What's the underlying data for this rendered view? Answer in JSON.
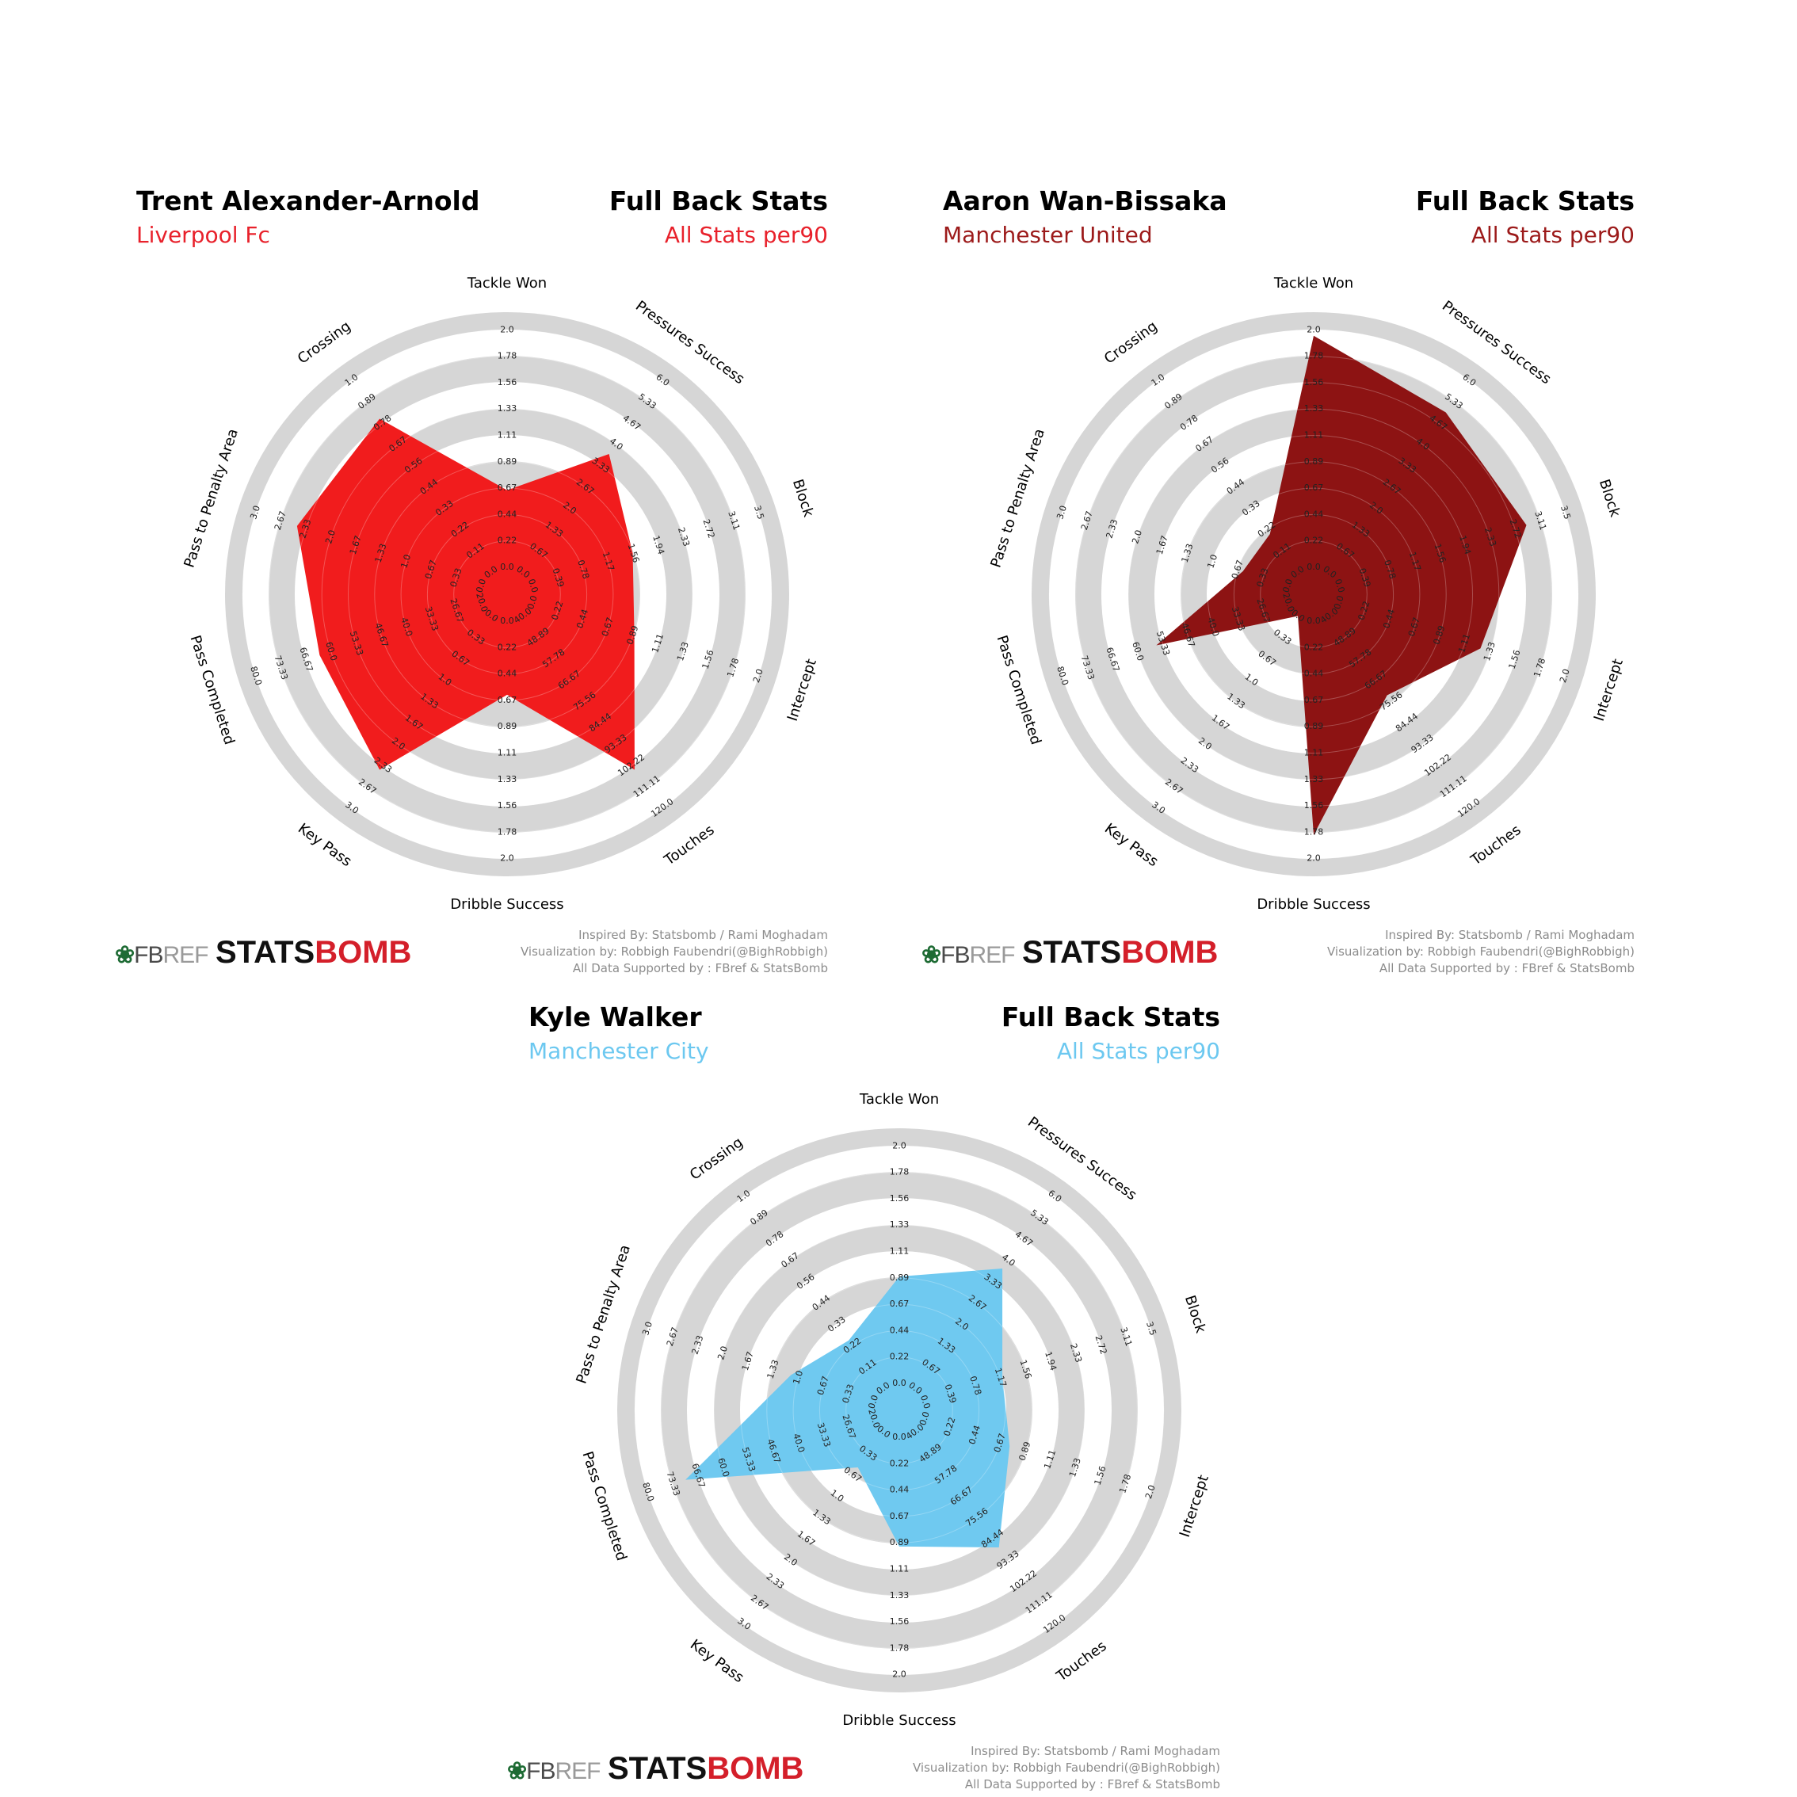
{
  "chart_data": [
    {
      "type": "radar",
      "player": "Trent Alexander-Arnold",
      "team": "Liverpool Fc",
      "title": "Full Back Stats",
      "subtitle": "All Stats per90",
      "color": "#f11718",
      "team_color": "#e8212b",
      "params": [
        "Tackle Won",
        "Pressures Success",
        "Block",
        "Intercept",
        "Touches",
        "Dribble Success",
        "Key Pass",
        "Pass Completed",
        "Pass to Penalty Area",
        "Crossing"
      ],
      "ranges": [
        [
          0,
          2
        ],
        [
          0,
          6
        ],
        [
          0,
          3.5
        ],
        [
          0,
          2
        ],
        [
          40,
          120
        ],
        [
          0,
          2
        ],
        [
          0,
          3
        ],
        [
          20,
          80
        ],
        [
          0,
          3
        ],
        [
          0,
          1
        ]
      ],
      "ticks": [
        [
          "0.0",
          "0.22",
          "0.44",
          "0.67",
          "0.89",
          "1.11",
          "1.33",
          "1.56",
          "1.78",
          "2.0"
        ],
        [
          "0.0",
          "0.67",
          "1.33",
          "2.0",
          "2.67",
          "3.33",
          "4.0",
          "4.67",
          "5.33",
          "6.0"
        ],
        [
          "0.0",
          "0.39",
          "0.78",
          "1.17",
          "1.56",
          "1.94",
          "2.33",
          "2.72",
          "3.11",
          "3.5"
        ],
        [
          "0.0",
          "0.22",
          "0.44",
          "0.67",
          "0.89",
          "1.11",
          "1.33",
          "1.56",
          "1.78",
          "2.0"
        ],
        [
          "40.0",
          "48.89",
          "57.78",
          "66.67",
          "75.56",
          "84.44",
          "93.33",
          "102.22",
          "111.11",
          "120.0"
        ],
        [
          "0.0",
          "0.22",
          "0.44",
          "0.67",
          "0.89",
          "1.11",
          "1.33",
          "1.56",
          "1.78",
          "2.0"
        ],
        [
          "0.0",
          "0.33",
          "0.67",
          "1.0",
          "1.33",
          "1.67",
          "2.0",
          "2.33",
          "2.67",
          "3.0"
        ],
        [
          "20.0",
          "26.67",
          "33.33",
          "40.0",
          "46.67",
          "53.33",
          "60.0",
          "66.67",
          "73.33",
          "80.0"
        ],
        [
          "0.0",
          "0.33",
          "0.67",
          "1.0",
          "1.33",
          "1.67",
          "2.0",
          "2.33",
          "2.67",
          "3.0"
        ],
        [
          "0.0",
          "0.11",
          "0.22",
          "0.33",
          "0.44",
          "0.56",
          "0.67",
          "0.78",
          "0.89",
          "1.0"
        ]
      ],
      "values": [
        0.65,
        3.7,
        1.55,
        0.9,
        104,
        0.62,
        2.4,
        63,
        2.45,
        0.8
      ],
      "footer": [
        "Inspired By: Statsbomb / Rami Moghadam",
        "Visualization by: Robbigh Faubendri(@BighRobbigh)",
        "All Data Supported by : FBref & StatsBomb"
      ],
      "logos": [
        "FBREF",
        "STATSBOMB"
      ]
    },
    {
      "type": "radar",
      "player": "Aaron Wan-Bissaka",
      "team": "Manchester United",
      "title": "Full Back Stats",
      "subtitle": "All Stats per90",
      "color": "#8b0e0e",
      "team_color": "#9c1a1a",
      "params": [
        "Tackle Won",
        "Pressures Success",
        "Block",
        "Intercept",
        "Touches",
        "Dribble Success",
        "Key Pass",
        "Pass Completed",
        "Pass to Penalty Area",
        "Crossing"
      ],
      "ranges": [
        [
          0,
          2
        ],
        [
          0,
          6
        ],
        [
          0,
          3.5
        ],
        [
          0,
          2
        ],
        [
          40,
          120
        ],
        [
          0,
          2
        ],
        [
          0,
          3
        ],
        [
          20,
          80
        ],
        [
          0,
          3
        ],
        [
          0,
          1
        ]
      ],
      "ticks": [
        [
          "0.0",
          "0.22",
          "0.44",
          "0.67",
          "0.89",
          "1.11",
          "1.33",
          "1.56",
          "1.78",
          "2.0"
        ],
        [
          "0.0",
          "0.67",
          "1.33",
          "2.0",
          "2.67",
          "3.33",
          "4.0",
          "4.67",
          "5.33",
          "6.0"
        ],
        [
          "0.0",
          "0.39",
          "0.78",
          "1.17",
          "1.56",
          "1.94",
          "2.33",
          "2.72",
          "3.11",
          "3.5"
        ],
        [
          "0.0",
          "0.22",
          "0.44",
          "0.67",
          "0.89",
          "1.11",
          "1.33",
          "1.56",
          "1.78",
          "2.0"
        ],
        [
          "40.0",
          "48.89",
          "57.78",
          "66.67",
          "75.56",
          "84.44",
          "93.33",
          "102.22",
          "111.11",
          "120.0"
        ],
        [
          "0.0",
          "0.22",
          "0.44",
          "0.67",
          "0.89",
          "1.11",
          "1.33",
          "1.56",
          "1.78",
          "2.0"
        ],
        [
          "0.0",
          "0.33",
          "0.67",
          "1.0",
          "1.33",
          "1.67",
          "2.0",
          "2.33",
          "2.67",
          "3.0"
        ],
        [
          "20.0",
          "26.67",
          "33.33",
          "40.0",
          "46.67",
          "53.33",
          "60.0",
          "66.67",
          "73.33",
          "80.0"
        ],
        [
          "0.0",
          "0.33",
          "0.67",
          "1.0",
          "1.33",
          "1.67",
          "2.0",
          "2.33",
          "2.67",
          "3.0"
        ],
        [
          "0.0",
          "0.11",
          "0.22",
          "0.33",
          "0.44",
          "0.56",
          "0.67",
          "0.78",
          "0.89",
          "1.0"
        ]
      ],
      "values": [
        1.95,
        5.0,
        2.9,
        1.25,
        73,
        1.8,
        0.0,
        55,
        0.6,
        0.2
      ],
      "footer": [
        "Inspired By: Statsbomb / Rami Moghadam",
        "Visualization by: Robbigh Faubendri(@BighRobbigh)",
        "All Data Supported by : FBref & StatsBomb"
      ],
      "logos": [
        "FBREF",
        "STATSBOMB"
      ]
    },
    {
      "type": "radar",
      "player": "Kyle Walker",
      "team": "Manchester City",
      "title": "Full Back Stats",
      "subtitle": "All Stats per90",
      "color": "#6cc8f0",
      "team_color": "#6cc8f0",
      "params": [
        "Tackle Won",
        "Pressures Success",
        "Block",
        "Intercept",
        "Touches",
        "Dribble Success",
        "Key Pass",
        "Pass Completed",
        "Pass to Penalty Area",
        "Crossing"
      ],
      "ranges": [
        [
          0,
          2
        ],
        [
          0,
          6
        ],
        [
          0,
          3.5
        ],
        [
          0,
          2
        ],
        [
          40,
          120
        ],
        [
          0,
          2
        ],
        [
          0,
          3
        ],
        [
          20,
          80
        ],
        [
          0,
          3
        ],
        [
          0,
          1
        ]
      ],
      "ticks": [
        [
          "0.0",
          "0.22",
          "0.44",
          "0.67",
          "0.89",
          "1.11",
          "1.33",
          "1.56",
          "1.78",
          "2.0"
        ],
        [
          "0.0",
          "0.67",
          "1.33",
          "2.0",
          "2.67",
          "3.33",
          "4.0",
          "4.67",
          "5.33",
          "6.0"
        ],
        [
          "0.0",
          "0.39",
          "0.78",
          "1.17",
          "1.56",
          "1.94",
          "2.33",
          "2.72",
          "3.11",
          "3.5"
        ],
        [
          "0.0",
          "0.22",
          "0.44",
          "0.67",
          "0.89",
          "1.11",
          "1.33",
          "1.56",
          "1.78",
          "2.0"
        ],
        [
          "40.0",
          "48.89",
          "57.78",
          "66.67",
          "75.56",
          "84.44",
          "93.33",
          "102.22",
          "111.11",
          "120.0"
        ],
        [
          "0.0",
          "0.22",
          "0.44",
          "0.67",
          "0.89",
          "1.11",
          "1.33",
          "1.56",
          "1.78",
          "2.0"
        ],
        [
          "0.0",
          "0.33",
          "0.67",
          "1.0",
          "1.33",
          "1.67",
          "2.0",
          "2.33",
          "2.67",
          "3.0"
        ],
        [
          "20.0",
          "26.67",
          "33.33",
          "40.0",
          "46.67",
          "53.33",
          "60.0",
          "66.67",
          "73.33",
          "80.0"
        ],
        [
          "0.0",
          "0.33",
          "0.67",
          "1.0",
          "1.33",
          "1.67",
          "2.0",
          "2.33",
          "2.67",
          "3.0"
        ],
        [
          "0.0",
          "0.11",
          "0.22",
          "0.33",
          "0.44",
          "0.56",
          "0.67",
          "0.78",
          "0.89",
          "1.0"
        ]
      ],
      "values": [
        0.9,
        3.75,
        1.2,
        0.75,
        88,
        0.92,
        0.55,
        70,
        1.1,
        0.25
      ],
      "footer": [
        "Inspired By: Statsbomb / Rami Moghadam",
        "Visualization by: Robbigh Faubendri(@BighRobbigh)",
        "All Data Supported by : FBref & StatsBomb"
      ],
      "logos": [
        "FBREF",
        "STATSBOMB"
      ]
    }
  ]
}
